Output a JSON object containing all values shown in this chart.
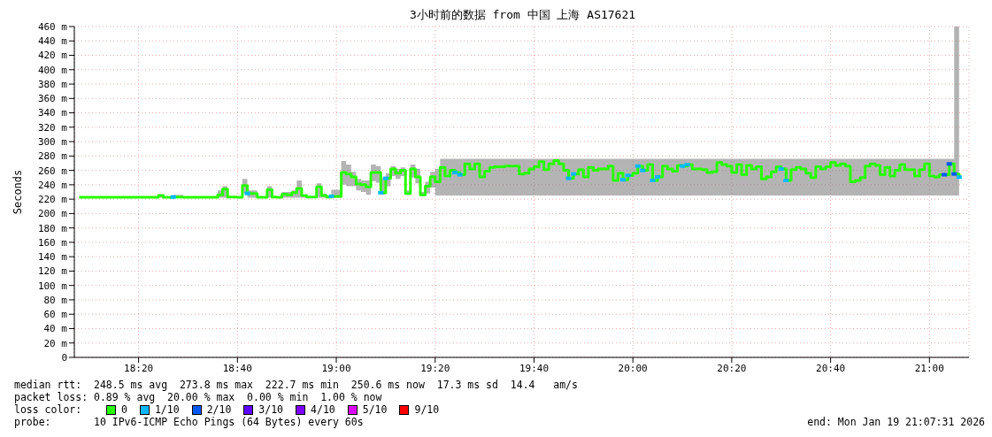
{
  "chart_data": {
    "type": "step",
    "title": "3小时前的数据 from 中国 上海 AS17621",
    "ylabel": "Seconds",
    "xlim": [
      "2026-01-19T18:07",
      "2026-01-19T21:08"
    ],
    "xticks": [
      {
        "value": "2026-01-19T18:20",
        "label": "18:20"
      },
      {
        "value": "2026-01-19T18:40",
        "label": "18:40"
      },
      {
        "value": "2026-01-19T19:00",
        "label": "19:00"
      },
      {
        "value": "2026-01-19T19:20",
        "label": "19:20"
      },
      {
        "value": "2026-01-19T19:40",
        "label": "19:40"
      },
      {
        "value": "2026-01-19T20:00",
        "label": "20:00"
      },
      {
        "value": "2026-01-19T20:20",
        "label": "20:20"
      },
      {
        "value": "2026-01-19T20:40",
        "label": "20:40"
      },
      {
        "value": "2026-01-19T21:00",
        "label": "21:00"
      }
    ],
    "ylim": [
      0,
      460
    ],
    "yticks": [
      0,
      {
        "value": 20,
        "label": "20 m"
      },
      {
        "value": 40,
        "label": "40 m"
      },
      {
        "value": 60,
        "label": "60 m"
      },
      {
        "value": 80,
        "label": "80 m"
      },
      {
        "value": 100,
        "label": "100 m"
      },
      {
        "value": 120,
        "label": "120 m"
      },
      {
        "value": 140,
        "label": "140 m"
      },
      {
        "value": 160,
        "label": "160 m"
      },
      {
        "value": 180,
        "label": "180 m"
      },
      {
        "value": 200,
        "label": "200 m"
      },
      {
        "value": 220,
        "label": "220 m"
      },
      {
        "value": 240,
        "label": "240 m"
      },
      {
        "value": 260,
        "label": "260 m"
      },
      {
        "value": 280,
        "label": "280 m"
      },
      {
        "value": 300,
        "label": "300 m"
      },
      {
        "value": 320,
        "label": "320 m"
      },
      {
        "value": 340,
        "label": "340 m"
      },
      {
        "value": 360,
        "label": "360 m"
      },
      {
        "value": 380,
        "label": "380 m"
      },
      {
        "value": 400,
        "label": "400 m"
      },
      {
        "value": 420,
        "label": "420 m"
      },
      {
        "value": 440,
        "label": "440 m"
      },
      {
        "value": 460,
        "label": "460 m"
      }
    ],
    "grid": true,
    "legend": "bottom",
    "legend_title": "loss color:",
    "annotations": [
      "median rtt:  248.5 ms avg  273.8 ms max  222.7 ms min  250.6 ms now  17.3 ms sd  14.4   am/s",
      "packet loss: 0.89 % avg  20.00 % max  0.00 % min  1.00 % now",
      "probe:       10 IPv6-ICMP Echo Pings (64 Bytes) every 60s",
      "end: Mon Jan 19 21:07:31 2026"
    ],
    "series": [
      {
        "name": "0",
        "color": "#26ff00",
        "x": [
          "2026-01-19T18:08",
          "2026-01-19T18:24",
          "2026-01-19T18:25",
          "2026-01-19T18:27",
          "2026-01-19T18:29",
          "2026-01-19T18:36",
          "2026-01-19T18:37",
          "2026-01-19T18:38",
          "2026-01-19T18:40",
          "2026-01-19T18:41",
          "2026-01-19T18:42",
          "2026-01-19T18:44",
          "2026-01-19T18:46",
          "2026-01-19T18:47",
          "2026-01-19T18:48",
          "2026-01-19T18:49",
          "2026-01-19T18:50",
          "2026-01-19T18:51",
          "2026-01-19T18:52",
          "2026-01-19T18:53",
          "2026-01-19T18:54",
          "2026-01-19T18:56",
          "2026-01-19T18:57",
          "2026-01-19T18:58",
          "2026-01-19T18:59",
          "2026-01-19T19:01",
          "2026-01-19T19:02",
          "2026-01-19T19:03",
          "2026-01-19T19:04",
          "2026-01-19T19:05",
          "2026-01-19T19:06",
          "2026-01-19T19:07",
          "2026-01-19T19:08",
          "2026-01-19T19:09",
          "2026-01-19T19:10",
          "2026-01-19T19:11",
          "2026-01-19T19:12",
          "2026-01-19T19:13",
          "2026-01-19T19:14",
          "2026-01-19T19:15",
          "2026-01-19T19:16",
          "2026-01-19T19:17",
          "2026-01-19T19:18",
          "2026-01-19T19:19",
          "2026-01-19T19:20",
          "2026-01-19T19:21",
          "2026-01-19T19:22",
          "2026-01-19T19:23",
          "2026-01-19T19:24",
          "2026-01-19T19:25",
          "2026-01-19T19:26",
          "2026-01-19T19:27",
          "2026-01-19T19:28",
          "2026-01-19T19:29",
          "2026-01-19T19:30",
          "2026-01-19T19:31",
          "2026-01-19T19:32",
          "2026-01-19T19:33",
          "2026-01-19T19:34",
          "2026-01-19T19:37",
          "2026-01-19T19:38",
          "2026-01-19T19:39",
          "2026-01-19T19:40",
          "2026-01-19T19:41",
          "2026-01-19T19:42",
          "2026-01-19T19:43",
          "2026-01-19T19:44",
          "2026-01-19T19:45",
          "2026-01-19T19:46",
          "2026-01-19T19:47",
          "2026-01-19T19:48",
          "2026-01-19T19:49",
          "2026-01-19T19:50",
          "2026-01-19T19:51",
          "2026-01-19T19:52",
          "2026-01-19T19:53",
          "2026-01-19T19:55",
          "2026-01-19T19:56",
          "2026-01-19T19:57",
          "2026-01-19T19:58",
          "2026-01-19T19:59",
          "2026-01-19T20:00",
          "2026-01-19T20:01",
          "2026-01-19T20:02",
          "2026-01-19T20:03",
          "2026-01-19T20:04",
          "2026-01-19T20:05",
          "2026-01-19T20:06",
          "2026-01-19T20:07",
          "2026-01-19T20:08",
          "2026-01-19T20:09",
          "2026-01-19T20:10",
          "2026-01-19T20:11",
          "2026-01-19T20:12",
          "2026-01-19T20:13",
          "2026-01-19T20:14",
          "2026-01-19T20:15",
          "2026-01-19T20:16",
          "2026-01-19T20:17",
          "2026-01-19T20:18",
          "2026-01-19T20:19",
          "2026-01-19T20:20",
          "2026-01-19T20:21",
          "2026-01-19T20:22",
          "2026-01-19T20:23",
          "2026-01-19T20:24",
          "2026-01-19T20:25",
          "2026-01-19T20:26",
          "2026-01-19T20:27",
          "2026-01-19T20:28",
          "2026-01-19T20:29",
          "2026-01-19T20:30",
          "2026-01-19T20:31",
          "2026-01-19T20:32",
          "2026-01-19T20:33",
          "2026-01-19T20:34",
          "2026-01-19T20:35",
          "2026-01-19T20:36",
          "2026-01-19T20:37",
          "2026-01-19T20:38",
          "2026-01-19T20:39",
          "2026-01-19T20:40",
          "2026-01-19T20:41",
          "2026-01-19T20:42",
          "2026-01-19T20:43",
          "2026-01-19T20:44",
          "2026-01-19T20:45",
          "2026-01-19T20:46",
          "2026-01-19T20:47",
          "2026-01-19T20:48",
          "2026-01-19T20:49",
          "2026-01-19T20:50",
          "2026-01-19T20:51",
          "2026-01-19T20:52",
          "2026-01-19T20:53",
          "2026-01-19T20:54",
          "2026-01-19T20:55",
          "2026-01-19T20:56",
          "2026-01-19T20:57",
          "2026-01-19T20:58",
          "2026-01-19T20:59",
          "2026-01-19T21:00",
          "2026-01-19T21:01",
          "2026-01-19T21:02",
          "2026-01-19T21:03",
          "2026-01-19T21:04",
          "2026-01-19T21:05",
          "2026-01-19T21:06"
        ],
        "values": [
          222.7,
          225,
          222.7,
          223,
          222.7,
          226,
          234,
          223,
          222.7,
          239,
          228,
          222.7,
          233,
          223,
          222.7,
          227,
          226,
          229,
          235,
          225,
          223,
          237,
          225,
          223,
          224,
          257,
          255,
          251,
          241,
          240,
          237,
          257,
          257,
          229,
          249,
          262,
          256,
          260,
          228,
          262,
          251,
          226,
          238,
          251,
          244,
          264,
          252,
          260,
          257,
          254,
          269,
          262,
          269,
          251,
          259,
          264,
          265,
          265,
          266,
          255,
          256,
          262,
          265,
          272,
          261,
          269,
          273.8,
          269,
          260,
          249,
          255,
          261,
          251,
          264,
          260,
          262,
          266,
          246,
          256,
          247,
          253,
          256,
          266,
          260,
          268,
          246,
          251,
          266,
          262,
          259,
          267,
          266,
          268,
          262,
          262,
          261,
          257,
          258,
          271,
          268,
          266,
          257,
          268,
          254,
          267,
          262,
          265,
          248,
          251,
          258,
          265,
          262,
          246,
          261,
          264,
          262,
          256,
          250,
          265,
          262,
          265,
          271,
          267,
          269,
          266,
          244,
          246,
          250,
          266,
          269,
          267,
          254,
          264,
          252,
          260,
          268,
          261,
          261,
          252,
          261,
          269,
          252,
          251,
          254,
          254,
          269,
          255,
          250.6
        ],
        "lower": [
          222,
          222,
          222,
          222,
          222,
          222,
          222,
          222,
          222,
          228,
          222,
          222,
          222,
          222,
          222,
          222,
          222,
          222,
          222,
          222,
          222,
          222,
          222,
          222,
          222,
          240,
          238,
          238,
          232,
          230,
          226,
          245,
          243,
          226,
          238,
          252,
          248,
          252,
          226,
          250,
          242,
          224,
          228,
          236,
          225,
          225,
          225,
          225,
          225,
          225,
          225,
          225,
          225,
          225,
          225,
          225,
          225,
          225,
          225,
          225,
          225,
          225,
          225,
          225,
          225,
          225,
          225,
          225,
          225,
          225,
          225,
          225,
          225,
          225,
          225,
          225,
          225,
          225,
          225,
          225,
          225,
          225,
          225,
          225,
          225,
          225,
          225,
          225,
          225,
          225,
          225,
          225,
          225,
          225,
          225,
          225,
          225,
          225,
          225,
          225,
          225,
          225,
          225,
          225,
          225,
          225,
          225,
          225,
          225,
          225,
          225,
          225,
          225,
          225,
          225,
          225,
          225,
          225,
          225,
          225,
          225,
          225,
          225,
          225,
          225,
          225,
          225,
          225,
          225,
          225,
          225,
          225,
          225,
          225,
          225,
          225,
          225,
          225,
          225,
          225,
          225,
          225,
          225,
          225,
          225,
          225,
          225,
          225
        ],
        "upper": [
          223,
          227,
          223,
          226,
          223,
          232,
          238,
          224,
          223,
          248,
          232,
          223,
          238,
          224,
          223,
          230,
          230,
          232,
          246,
          226,
          224,
          242,
          228,
          224,
          233,
          273,
          268,
          258,
          248,
          246,
          246,
          268,
          266,
          250,
          256,
          266,
          262,
          264,
          232,
          268,
          262,
          230,
          244,
          258,
          262,
          276,
          276,
          276,
          276,
          276,
          276,
          276,
          276,
          276,
          276,
          276,
          276,
          276,
          276,
          276,
          276,
          276,
          276,
          276,
          276,
          276,
          276,
          276,
          276,
          276,
          276,
          276,
          276,
          276,
          276,
          276,
          276,
          276,
          276,
          276,
          276,
          276,
          276,
          276,
          276,
          276,
          276,
          276,
          276,
          276,
          276,
          276,
          276,
          276,
          276,
          276,
          276,
          276,
          276,
          276,
          276,
          276,
          276,
          276,
          276,
          276,
          276,
          276,
          276,
          276,
          276,
          276,
          276,
          276,
          276,
          276,
          276,
          276,
          276,
          276,
          276,
          276,
          276,
          276,
          276,
          276,
          276,
          276,
          276,
          276,
          276,
          276,
          276,
          276,
          276,
          276,
          276,
          276,
          276,
          276,
          276,
          276,
          276,
          276,
          276,
          276,
          460,
          276
        ]
      },
      {
        "name": "1/10",
        "type": "scatter",
        "marker": "square",
        "color": "#00b8ff",
        "x": [
          "2026-01-19T18:27",
          "2026-01-19T18:42",
          "2026-01-19T18:59",
          "2026-01-19T19:09",
          "2026-01-19T19:10",
          "2026-01-19T19:24",
          "2026-01-19T19:25",
          "2026-01-19T19:47",
          "2026-01-19T19:48",
          "2026-01-19T19:58",
          "2026-01-19T19:59",
          "2026-01-19T20:01",
          "2026-01-19T20:02",
          "2026-01-19T20:04",
          "2026-01-19T20:05",
          "2026-01-19T20:10",
          "2026-01-19T20:11",
          "2026-01-19T20:30",
          "2026-01-19T20:31",
          "2026-01-19T21:06"
        ],
        "values": [
          223,
          228,
          224,
          229,
          249,
          257,
          254,
          249,
          255,
          247,
          253,
          266,
          260,
          246,
          251,
          266,
          268,
          262,
          246,
          250.6
        ]
      },
      {
        "name": "2/10",
        "type": "scatter",
        "marker": "square",
        "color": "#0059ff",
        "x": [
          "2026-01-19T21:03",
          "2026-01-19T21:04",
          "2026-01-19T21:05"
        ],
        "values": [
          254,
          269,
          255
        ]
      },
      {
        "name": "3/10",
        "type": "scatter",
        "marker": "square",
        "color": "#5e00ff"
      },
      {
        "name": "4/10",
        "type": "scatter",
        "marker": "square",
        "color": "#7e00ff"
      },
      {
        "name": "5/10",
        "type": "scatter",
        "marker": "square",
        "color": "#dd00ff"
      },
      {
        "name": "9/10",
        "type": "scatter",
        "marker": "square",
        "color": "#ff0000"
      }
    ]
  }
}
